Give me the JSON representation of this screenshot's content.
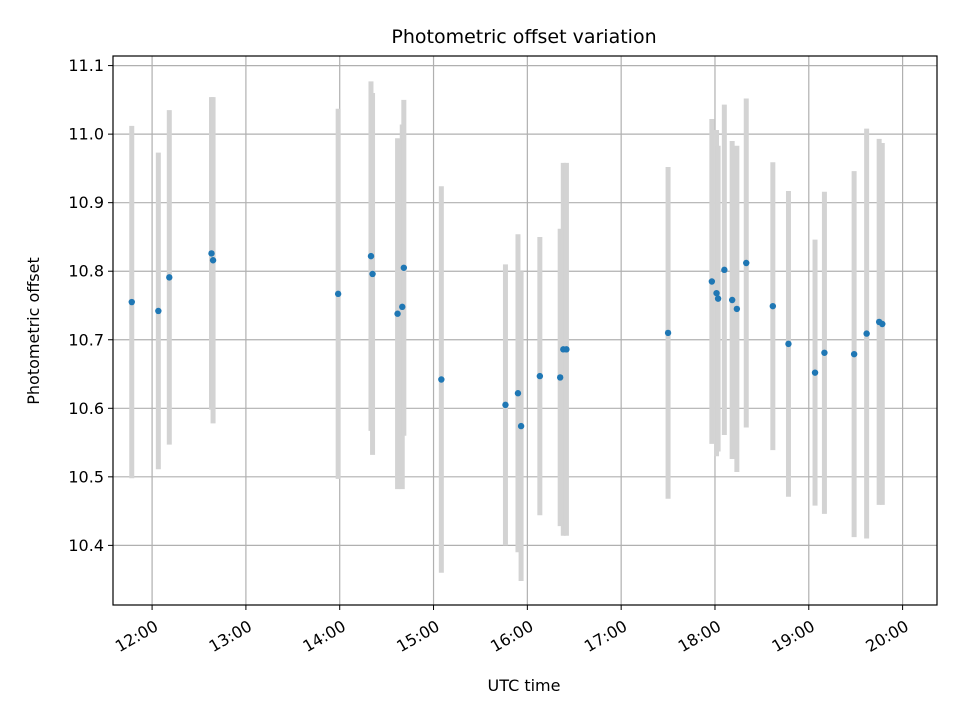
{
  "chart_data": {
    "type": "scatter",
    "title": "Photometric offset variation",
    "xlabel": "UTC time",
    "ylabel": "Photometric offset",
    "grid": true,
    "x_ticks": [
      "12:00",
      "13:00",
      "14:00",
      "15:00",
      "16:00",
      "17:00",
      "18:00",
      "19:00",
      "20:00"
    ],
    "y_ticks": [
      "10.4",
      "10.5",
      "10.6",
      "10.7",
      "10.8",
      "10.9",
      "11.0",
      "11.1"
    ],
    "xlim": [
      "11:35",
      "20:22"
    ],
    "ylim": [
      10.313,
      11.114
    ],
    "colors": {
      "marker": "#1f77b4",
      "errorbar": "#d3d3d3",
      "grid": "#b0b0b0"
    },
    "points": [
      {
        "x": "11:47",
        "y": 10.755,
        "err": 0.257
      },
      {
        "x": "12:04",
        "y": 10.742,
        "err": 0.231
      },
      {
        "x": "12:11",
        "y": 10.791,
        "err": 0.244
      },
      {
        "x": "12:38",
        "y": 10.826,
        "err": 0.228
      },
      {
        "x": "12:39",
        "y": 10.816,
        "err": 0.238
      },
      {
        "x": "13:59",
        "y": 10.767,
        "err": 0.27
      },
      {
        "x": "14:20",
        "y": 10.822,
        "err": 0.255
      },
      {
        "x": "14:21",
        "y": 10.796,
        "err": 0.264
      },
      {
        "x": "14:37",
        "y": 10.738,
        "err": 0.256
      },
      {
        "x": "14:40",
        "y": 10.748,
        "err": 0.266
      },
      {
        "x": "14:41",
        "y": 10.805,
        "err": 0.245
      },
      {
        "x": "15:05",
        "y": 10.642,
        "err": 0.282
      },
      {
        "x": "15:46",
        "y": 10.605,
        "err": 0.205
      },
      {
        "x": "15:54",
        "y": 10.622,
        "err": 0.232
      },
      {
        "x": "15:56",
        "y": 10.574,
        "err": 0.226
      },
      {
        "x": "16:08",
        "y": 10.647,
        "err": 0.203
      },
      {
        "x": "16:21",
        "y": 10.645,
        "err": 0.217
      },
      {
        "x": "16:23",
        "y": 10.686,
        "err": 0.272
      },
      {
        "x": "16:25",
        "y": 10.686,
        "err": 0.272
      },
      {
        "x": "17:30",
        "y": 10.71,
        "err": 0.242
      },
      {
        "x": "17:58",
        "y": 10.785,
        "err": 0.237
      },
      {
        "x": "18:01",
        "y": 10.768,
        "err": 0.238
      },
      {
        "x": "18:02",
        "y": 10.76,
        "err": 0.223
      },
      {
        "x": "18:06",
        "y": 10.802,
        "err": 0.241
      },
      {
        "x": "18:11",
        "y": 10.758,
        "err": 0.232
      },
      {
        "x": "18:14",
        "y": 10.745,
        "err": 0.238
      },
      {
        "x": "18:20",
        "y": 10.812,
        "err": 0.24
      },
      {
        "x": "18:37",
        "y": 10.749,
        "err": 0.21
      },
      {
        "x": "18:47",
        "y": 10.694,
        "err": 0.223
      },
      {
        "x": "19:04",
        "y": 10.652,
        "err": 0.194
      },
      {
        "x": "19:10",
        "y": 10.681,
        "err": 0.235
      },
      {
        "x": "19:29",
        "y": 10.679,
        "err": 0.267
      },
      {
        "x": "19:37",
        "y": 10.709,
        "err": 0.299
      },
      {
        "x": "19:45",
        "y": 10.726,
        "err": 0.267
      },
      {
        "x": "19:47",
        "y": 10.723,
        "err": 0.264
      }
    ]
  }
}
